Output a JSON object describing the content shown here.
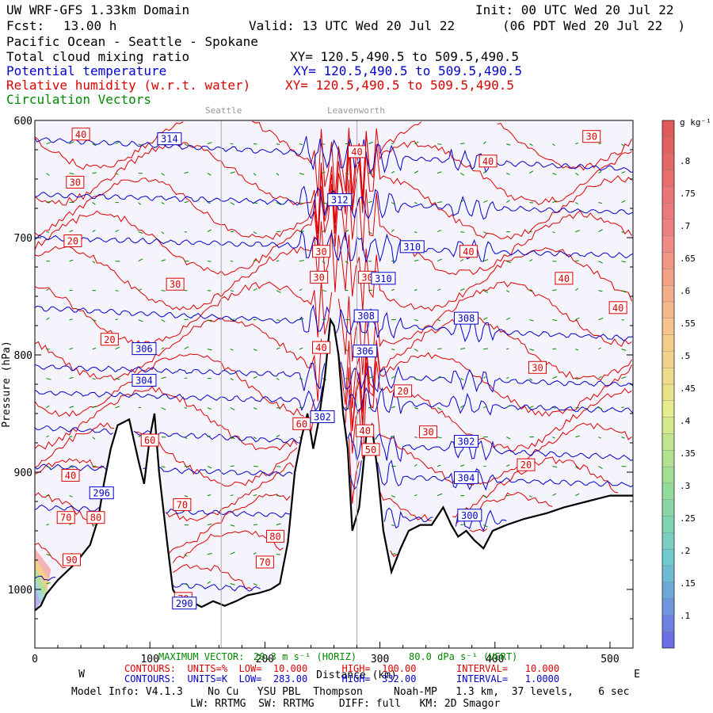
{
  "header": {
    "model": "UW WRF-GFS 1.33km Domain",
    "init": "Init: 00 UTC Wed 20 Jul 22",
    "fcst_label": "Fcst:",
    "fcst_hours": "13.00 h",
    "valid": "Valid: 13 UTC Wed 20 Jul 22",
    "valid_local": "(06 PDT Wed 20 Jul 22  )",
    "region": "Pacific Ocean - Seattle - Spokane"
  },
  "fields": [
    {
      "name": "Total cloud mixing ratio",
      "xy": "XY= 120.5,490.5 to 509.5,490.5",
      "color": "#000000"
    },
    {
      "name": "Potential temperature",
      "xy": "XY= 120.5,490.5 to 509.5,490.5",
      "color": "#0000cc"
    },
    {
      "name": "Relative humidity (w.r.t. water)",
      "xy": "XY= 120.5,490.5 to 509.5,490.5",
      "color": "#dd0000"
    },
    {
      "name": "Circulation Vectors",
      "xy": "",
      "color": "#008800"
    }
  ],
  "reference_lines": [
    {
      "label": "Seattle",
      "x": 162
    },
    {
      "label": "Leavenworth",
      "x": 280
    }
  ],
  "chart_data": {
    "type": "cross-section",
    "xlabel": "Distance (km)",
    "ylabel": "Pressure (hPa)",
    "xlim": [
      0,
      520
    ],
    "ylim": [
      1050,
      600
    ],
    "x_ticks": [
      0,
      100,
      200,
      300,
      400,
      500
    ],
    "y_ticks": [
      {
        "value": 600,
        "label": "600"
      },
      {
        "value": 700,
        "label": "700"
      },
      {
        "value": 800,
        "label": "800"
      },
      {
        "value": 900,
        "label": "900"
      },
      {
        "value": 1000,
        "label": "1000"
      }
    ],
    "x_end_labels": {
      "left": "W",
      "right": "E"
    },
    "terrain_pressure": [
      [
        0,
        1018
      ],
      [
        5,
        1014
      ],
      [
        10,
        1004
      ],
      [
        20,
        992
      ],
      [
        35,
        978
      ],
      [
        48,
        962
      ],
      [
        55,
        940
      ],
      [
        60,
        910
      ],
      [
        66,
        880
      ],
      [
        72,
        860
      ],
      [
        82,
        855
      ],
      [
        90,
        890
      ],
      [
        95,
        910
      ],
      [
        100,
        870
      ],
      [
        104,
        850
      ],
      [
        108,
        900
      ],
      [
        115,
        960
      ],
      [
        120,
        1000
      ],
      [
        127,
        1012
      ],
      [
        135,
        1010
      ],
      [
        145,
        1015
      ],
      [
        155,
        1010
      ],
      [
        165,
        1014
      ],
      [
        175,
        1010
      ],
      [
        185,
        1005
      ],
      [
        195,
        1003
      ],
      [
        205,
        1000
      ],
      [
        213,
        995
      ],
      [
        220,
        960
      ],
      [
        226,
        900
      ],
      [
        232,
        870
      ],
      [
        237,
        850
      ],
      [
        242,
        880
      ],
      [
        246,
        860
      ],
      [
        252,
        820
      ],
      [
        257,
        770
      ],
      [
        260,
        775
      ],
      [
        264,
        800
      ],
      [
        268,
        850
      ],
      [
        272,
        880
      ],
      [
        276,
        950
      ],
      [
        282,
        930
      ],
      [
        288,
        870
      ],
      [
        293,
        860
      ],
      [
        298,
        900
      ],
      [
        303,
        950
      ],
      [
        310,
        985
      ],
      [
        318,
        965
      ],
      [
        325,
        950
      ],
      [
        335,
        945
      ],
      [
        345,
        945
      ],
      [
        355,
        930
      ],
      [
        362,
        945
      ],
      [
        368,
        955
      ],
      [
        375,
        950
      ],
      [
        382,
        958
      ],
      [
        390,
        965
      ],
      [
        398,
        950
      ],
      [
        410,
        945
      ],
      [
        425,
        940
      ],
      [
        445,
        935
      ],
      [
        460,
        930
      ],
      [
        480,
        925
      ],
      [
        500,
        920
      ],
      [
        520,
        920
      ]
    ],
    "theta_levels_K": [
      {
        "value": 314,
        "label": "314",
        "p_start": 616
      },
      {
        "value": 312,
        "label": "312",
        "p_start": 663
      },
      {
        "value": 310,
        "label": "310",
        "p_start": 700
      },
      {
        "value": 308,
        "label": "308",
        "p_start": 760
      },
      {
        "value": 306,
        "label": "306",
        "p_start": 810
      },
      {
        "value": 304,
        "label": "304",
        "p_start": 832
      },
      {
        "value": 302,
        "label": "302",
        "p_start": 862
      },
      {
        "value": 300,
        "label": "300",
        "p_start": 895
      },
      {
        "value": 296,
        "label": "296",
        "p_start": 930
      },
      {
        "value": 290,
        "label": "290",
        "p_start": 990
      }
    ],
    "theta_labels": [
      {
        "label": "314",
        "x": 117,
        "p": 616
      },
      {
        "label": "312",
        "x": 265,
        "p": 668
      },
      {
        "label": "310",
        "x": 328,
        "p": 708
      },
      {
        "label": "310",
        "x": 303,
        "p": 735
      },
      {
        "label": "308",
        "x": 288,
        "p": 767
      },
      {
        "label": "308",
        "x": 375,
        "p": 769
      },
      {
        "label": "306",
        "x": 95,
        "p": 795
      },
      {
        "label": "306",
        "x": 287,
        "p": 797
      },
      {
        "label": "304",
        "x": 95,
        "p": 822
      },
      {
        "label": "302",
        "x": 250,
        "p": 853
      },
      {
        "label": "302",
        "x": 375,
        "p": 874
      },
      {
        "label": "304",
        "x": 375,
        "p": 905
      },
      {
        "label": "300",
        "x": 378,
        "p": 937
      },
      {
        "label": "296",
        "x": 58,
        "p": 918
      },
      {
        "label": "290",
        "x": 130,
        "p": 1012
      }
    ],
    "rh_labels": [
      {
        "label": "40",
        "x": 40,
        "p": 612
      },
      {
        "label": "30",
        "x": 35,
        "p": 653
      },
      {
        "label": "20",
        "x": 33,
        "p": 703
      },
      {
        "label": "30",
        "x": 122,
        "p": 740
      },
      {
        "label": "20",
        "x": 65,
        "p": 787
      },
      {
        "label": "40",
        "x": 280,
        "p": 627
      },
      {
        "label": "40",
        "x": 394,
        "p": 635
      },
      {
        "label": "30",
        "x": 484,
        "p": 614
      },
      {
        "label": "40",
        "x": 377,
        "p": 712
      },
      {
        "label": "40",
        "x": 460,
        "p": 735
      },
      {
        "label": "40",
        "x": 507,
        "p": 760
      },
      {
        "label": "30",
        "x": 249,
        "p": 712
      },
      {
        "label": "30",
        "x": 247,
        "p": 734
      },
      {
        "label": "30",
        "x": 289,
        "p": 734
      },
      {
        "label": "40",
        "x": 249,
        "p": 794
      },
      {
        "label": "30",
        "x": 437,
        "p": 811
      },
      {
        "label": "20",
        "x": 320,
        "p": 831
      },
      {
        "label": "30",
        "x": 342,
        "p": 866
      },
      {
        "label": "20",
        "x": 427,
        "p": 894
      },
      {
        "label": "40",
        "x": 287,
        "p": 865
      },
      {
        "label": "50",
        "x": 292,
        "p": 881
      },
      {
        "label": "60",
        "x": 232,
        "p": 859
      },
      {
        "label": "60",
        "x": 100,
        "p": 873
      },
      {
        "label": "40",
        "x": 31,
        "p": 903
      },
      {
        "label": "70",
        "x": 128,
        "p": 928
      },
      {
        "label": "70",
        "x": 27,
        "p": 939
      },
      {
        "label": "80",
        "x": 53,
        "p": 939
      },
      {
        "label": "80",
        "x": 209,
        "p": 955
      },
      {
        "label": "70",
        "x": 200,
        "p": 977
      },
      {
        "label": "90",
        "x": 32,
        "p": 975
      },
      {
        "label": "70",
        "x": 129,
        "p": 1008
      }
    ],
    "cloud_colorbar": {
      "label": "g kg⁻¹",
      "ticks": [
        ".1",
        ".15",
        ".2",
        ".25",
        ".3",
        ".35",
        ".4",
        ".45",
        ".5",
        ".55",
        ".6",
        ".65",
        ".7",
        ".75",
        ".8"
      ]
    }
  },
  "footer": {
    "max_vector_label": "MAXIMUM VECTOR:",
    "max_vector_horiz": "20.3 m s⁻¹ (HORIZ)",
    "max_vector_vert": "80.0 dPa s⁻¹ (VERT)",
    "rh_contours": "CONTOURS:  UNITS=%  LOW=  10.000      HIGH=  100.00       INTERVAL=   10.000",
    "theta_contours": "CONTOURS:  UNITS=K  LOW=  283.00      HIGH=  332.00       INTERVAL=   1.0000",
    "model_info": "Model Info: V4.1.3    No Cu   YSU PBL  Thompson     Noah-MP   1.3 km,  37 levels,    6 sec",
    "model_info2": "LW: RRTMG  SW: RRTMG    DIFF: full   KM: 2D Smagor"
  }
}
